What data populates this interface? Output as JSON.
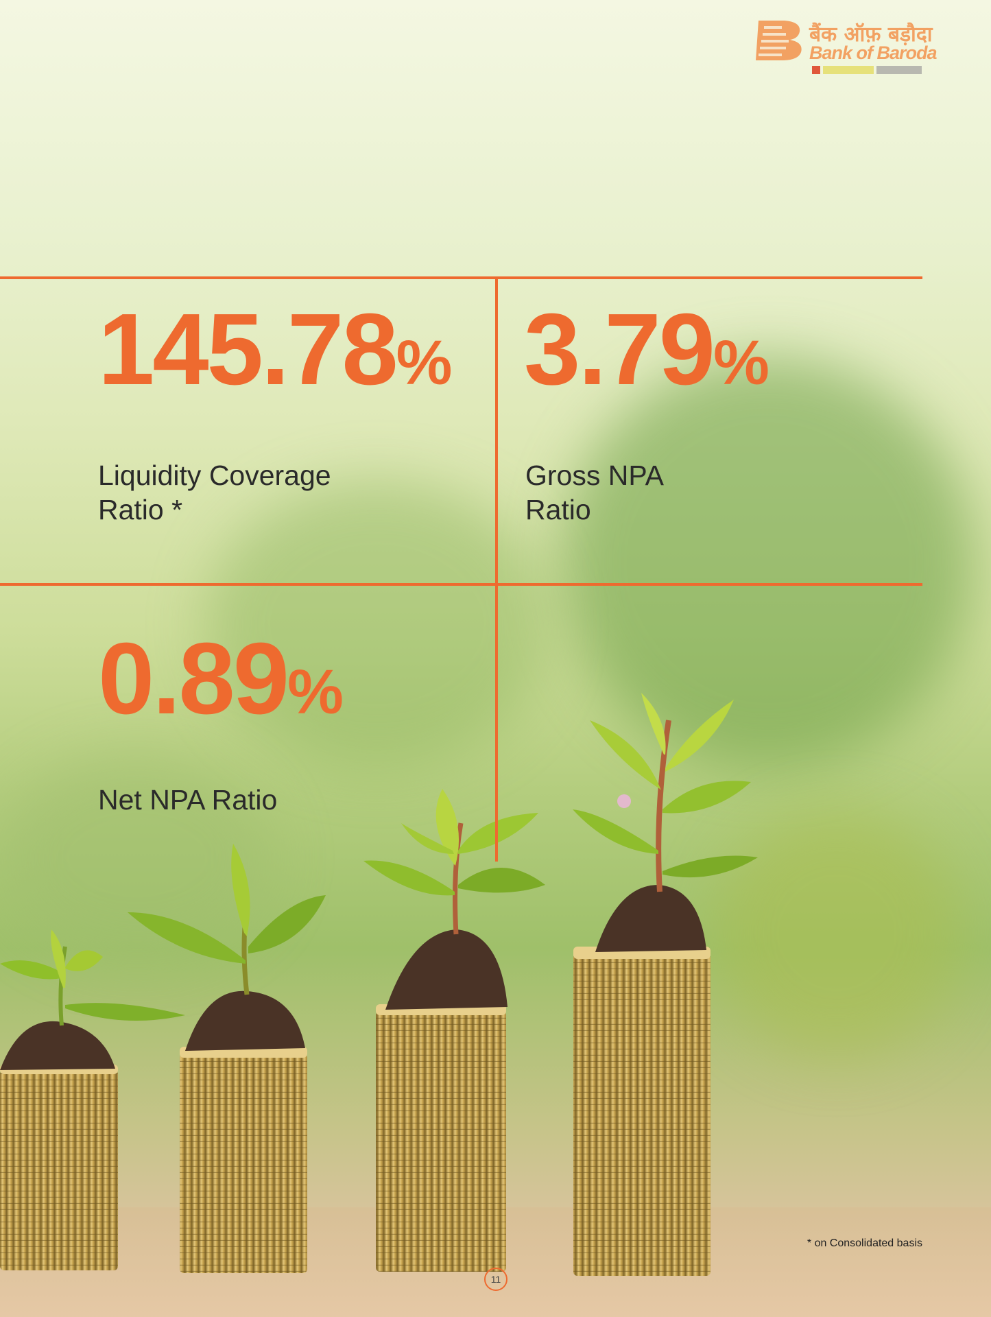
{
  "logo": {
    "hindi": "बैंक ऑफ़ बड़ौदा",
    "english": "Bank of Baroda"
  },
  "stats": [
    {
      "value": "145.78",
      "unit": "%",
      "label_line1": "Liquidity Coverage",
      "label_line2": "Ratio *"
    },
    {
      "value": "3.79",
      "unit": "%",
      "label_line1": "Gross NPA",
      "label_line2": "Ratio"
    },
    {
      "value": "0.89",
      "unit": "%",
      "label_line1": "Net NPA Ratio",
      "label_line2": ""
    }
  ],
  "footnote": "* on Consolidated basis",
  "page_number": "11",
  "colors": {
    "accent": "#ee6a2f",
    "text": "#2a2a2a"
  }
}
